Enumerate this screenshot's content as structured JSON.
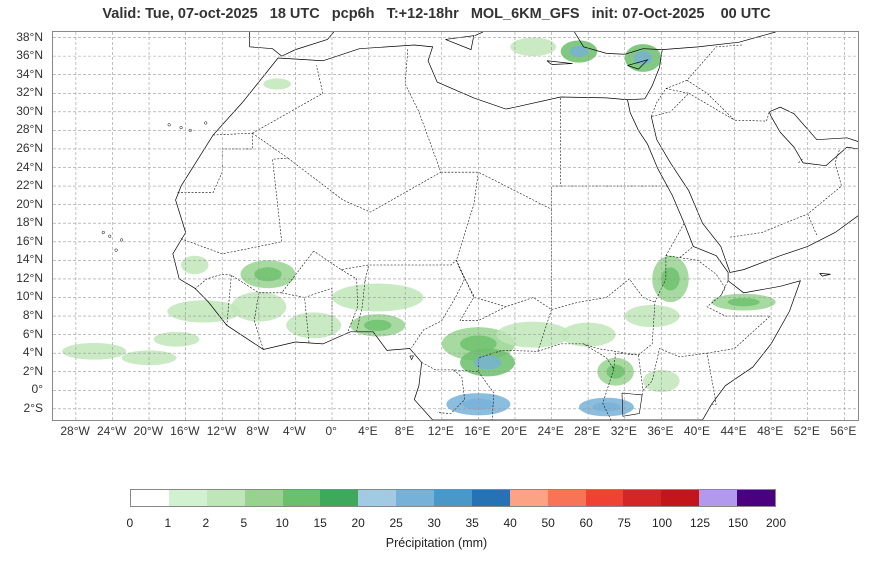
{
  "title": "Valid: Tue, 07-oct-2025   18 UTC   pcp6h   T:+12-18hr   MOL_6KM_GFS   init: 07-Oct-2025    00 UTC",
  "map": {
    "lat_labels": [
      "38°N",
      "36°N",
      "34°N",
      "32°N",
      "30°N",
      "28°N",
      "26°N",
      "24°N",
      "22°N",
      "20°N",
      "18°N",
      "16°N",
      "14°N",
      "12°N",
      "10°N",
      "8°N",
      "6°N",
      "4°N",
      "2°N",
      "0°",
      "2°S"
    ],
    "lat_values": [
      38,
      36,
      34,
      32,
      30,
      28,
      26,
      24,
      22,
      20,
      18,
      16,
      14,
      12,
      10,
      8,
      6,
      4,
      2,
      0,
      -2
    ],
    "lon_labels": [
      "28°W",
      "24°W",
      "20°W",
      "16°W",
      "12°W",
      "8°W",
      "4°W",
      "0°",
      "4°E",
      "8°E",
      "12°E",
      "16°E",
      "20°E",
      "24°E",
      "28°E",
      "32°E",
      "36°E",
      "40°E",
      "44°E",
      "48°E",
      "52°E",
      "56°E"
    ],
    "lon_values": [
      -28,
      -24,
      -20,
      -16,
      -12,
      -8,
      -4,
      0,
      4,
      8,
      12,
      16,
      20,
      24,
      28,
      32,
      36,
      40,
      44,
      48,
      52,
      56
    ],
    "lon_range": [
      -30.5,
      57.5
    ],
    "lat_range": [
      -3.2,
      38.6
    ],
    "grid": true,
    "precip_areas": [
      {
        "lon": -26,
        "lat": 4.2,
        "rx": 3.5,
        "ry": 0.9,
        "level": 1
      },
      {
        "lon": -20,
        "lat": 3.5,
        "rx": 3,
        "ry": 0.8,
        "level": 1
      },
      {
        "lon": -17,
        "lat": 5.5,
        "rx": 2.5,
        "ry": 0.8,
        "level": 1
      },
      {
        "lon": -14,
        "lat": 8.5,
        "rx": 4,
        "ry": 1.2,
        "level": 1
      },
      {
        "lon": -15,
        "lat": 13.5,
        "rx": 1.5,
        "ry": 1,
        "level": 1
      },
      {
        "lon": -7,
        "lat": 12.5,
        "rx": 3,
        "ry": 1.5,
        "level": 2
      },
      {
        "lon": -8,
        "lat": 9,
        "rx": 3,
        "ry": 1.6,
        "level": 1
      },
      {
        "lon": -2,
        "lat": 7,
        "rx": 3,
        "ry": 1.4,
        "level": 1
      },
      {
        "lon": 5,
        "lat": 10,
        "rx": 5,
        "ry": 1.5,
        "level": 1
      },
      {
        "lon": 5,
        "lat": 7,
        "rx": 3,
        "ry": 1.2,
        "level": 2
      },
      {
        "lon": 16,
        "lat": 5,
        "rx": 4,
        "ry": 1.8,
        "level": 2
      },
      {
        "lon": 17,
        "lat": 3,
        "rx": 3,
        "ry": 1.5,
        "level": 3
      },
      {
        "lon": 16,
        "lat": -1.5,
        "rx": 3.5,
        "ry": 1.2,
        "level": 4
      },
      {
        "lon": 22,
        "lat": 6,
        "rx": 4,
        "ry": 1.4,
        "level": 1
      },
      {
        "lon": 28,
        "lat": 6,
        "rx": 3,
        "ry": 1.3,
        "level": 1
      },
      {
        "lon": 30,
        "lat": -1.8,
        "rx": 3,
        "ry": 1,
        "level": 4
      },
      {
        "lon": 31,
        "lat": 2,
        "rx": 2,
        "ry": 1.5,
        "level": 2
      },
      {
        "lon": 36,
        "lat": 1,
        "rx": 2,
        "ry": 1.2,
        "level": 1
      },
      {
        "lon": 37,
        "lat": 12,
        "rx": 2,
        "ry": 2.5,
        "level": 2
      },
      {
        "lon": 35,
        "lat": 8,
        "rx": 3,
        "ry": 1.2,
        "level": 1
      },
      {
        "lon": 45,
        "lat": 9.5,
        "rx": 3.5,
        "ry": 0.9,
        "level": 2
      },
      {
        "lon": 22,
        "lat": 37,
        "rx": 2.5,
        "ry": 1,
        "level": 1
      },
      {
        "lon": 27,
        "lat": 36.5,
        "rx": 2,
        "ry": 1.2,
        "level": 3
      },
      {
        "lon": 34,
        "lat": 35.8,
        "rx": 2,
        "ry": 1.5,
        "level": 3
      },
      {
        "lon": -6,
        "lat": 33,
        "rx": 1.5,
        "ry": 0.6,
        "level": 1
      }
    ]
  },
  "colorbar": {
    "colors": [
      "#ffffff",
      "#d1f1d1",
      "#bfe6b8",
      "#97d38f",
      "#6bc06b",
      "#3ea95a",
      "#a1cbe3",
      "#75b1d8",
      "#4a98c8",
      "#2672b4",
      "#fba383",
      "#f77457",
      "#ef4233",
      "#d42625",
      "#c3161b",
      "#b399ec",
      "#9d7ae0",
      "#4b0080"
    ],
    "colors_used": [
      "#ffffff",
      "#d1f1d1",
      "#bfe6b8",
      "#97d38f",
      "#6bc06b",
      "#3ea95a",
      "#a1cbe3",
      "#75b1d8",
      "#4a98c8",
      "#2672b4",
      "#fba383",
      "#f77457",
      "#ef4233",
      "#d42625",
      "#c3161b",
      "#b399ec",
      "#4b0080"
    ],
    "ticks": [
      "0",
      "1",
      "2",
      "5",
      "10",
      "15",
      "20",
      "25",
      "30",
      "35",
      "40",
      "50",
      "60",
      "75",
      "100",
      "125",
      "150",
      "200"
    ],
    "label": "Précipitation (mm)"
  }
}
